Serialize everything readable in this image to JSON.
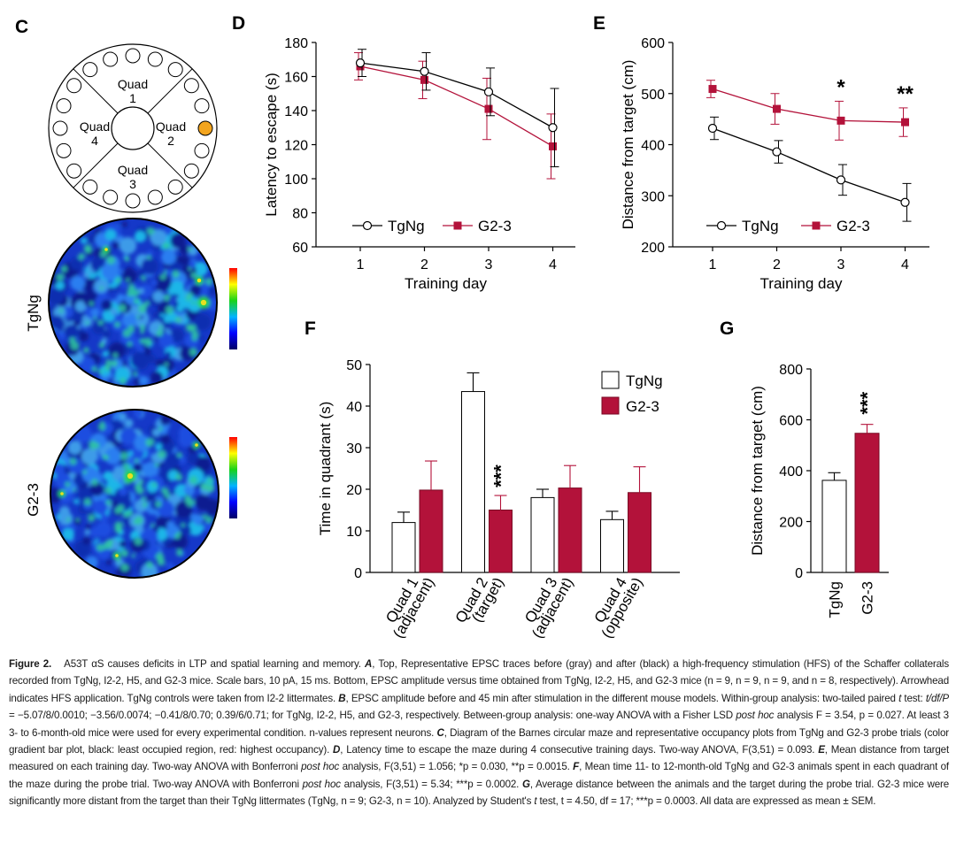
{
  "panels": {
    "C": {
      "label": "C",
      "quads": [
        {
          "name": "Quad",
          "num": "1"
        },
        {
          "name": "Quad",
          "num": "2"
        },
        {
          "name": "Quad",
          "num": "3"
        },
        {
          "name": "Quad",
          "num": "4"
        }
      ],
      "heatmaps": [
        {
          "group": "TgNg"
        },
        {
          "group": "G2-3"
        }
      ],
      "target_color": "#f3a51f"
    },
    "D": {
      "label": "D"
    },
    "E": {
      "label": "E"
    },
    "F": {
      "label": "F"
    },
    "G": {
      "label": "G"
    }
  },
  "chart_data": [
    {
      "panel": "D",
      "type": "line",
      "ylabel": "Latency to escape (s)",
      "xlabel": "Training day",
      "x": [
        1,
        2,
        3,
        4
      ],
      "ylim": [
        60,
        180
      ],
      "yticks": [
        60,
        80,
        100,
        120,
        140,
        160,
        180
      ],
      "legend": [
        "TgNg",
        "G2-3"
      ],
      "series": [
        {
          "name": "TgNg",
          "values": [
            168,
            163,
            151,
            130
          ],
          "err": [
            8,
            11,
            14,
            23
          ],
          "color": "#000000",
          "marker": "open-circle"
        },
        {
          "name": "G2-3",
          "values": [
            166,
            158,
            141,
            119
          ],
          "err": [
            8,
            11,
            18,
            19
          ],
          "color": "#b3123a",
          "marker": "square"
        }
      ]
    },
    {
      "panel": "E",
      "type": "line",
      "ylabel": "Distance from target (cm)",
      "xlabel": "Training day",
      "x": [
        1,
        2,
        3,
        4
      ],
      "ylim": [
        200,
        600
      ],
      "yticks": [
        200,
        300,
        400,
        500,
        600
      ],
      "legend": [
        "TgNg",
        "G2-3"
      ],
      "annotations": [
        {
          "x": 3,
          "text": "*"
        },
        {
          "x": 4,
          "text": "**"
        }
      ],
      "series": [
        {
          "name": "TgNg",
          "values": [
            432,
            386,
            331,
            287
          ],
          "err": [
            22,
            22,
            30,
            37
          ],
          "color": "#000000",
          "marker": "open-circle"
        },
        {
          "name": "G2-3",
          "values": [
            509,
            470,
            447,
            444
          ],
          "err": [
            17,
            30,
            38,
            28
          ],
          "color": "#b3123a",
          "marker": "square"
        }
      ]
    },
    {
      "panel": "F",
      "type": "bar",
      "ylabel": "Time in quadrant (s)",
      "categories": [
        [
          "Quad 1",
          "(adjacent)"
        ],
        [
          "Quad 2",
          "(target)"
        ],
        [
          "Quad 3",
          "(adjacent)"
        ],
        [
          "Quad 4",
          "(opposite)"
        ]
      ],
      "ylim": [
        0,
        50
      ],
      "yticks": [
        0,
        10,
        20,
        30,
        40,
        50
      ],
      "legend": [
        "TgNg",
        "G2-3"
      ],
      "annotations": [
        {
          "category": 1,
          "series": "G2-3",
          "text": "***"
        }
      ],
      "series": [
        {
          "name": "TgNg",
          "values": [
            12,
            43.5,
            18,
            12.7
          ],
          "err": [
            2.5,
            4.5,
            2,
            2
          ],
          "color": "#ffffff"
        },
        {
          "name": "G2-3",
          "values": [
            19.8,
            15,
            20.3,
            19.2
          ],
          "err": [
            7,
            3.5,
            5.4,
            6.2
          ],
          "color": "#b3123a"
        }
      ]
    },
    {
      "panel": "G",
      "type": "bar",
      "ylabel": "Distance from target (cm)",
      "categories": [
        "TgNg",
        "G2-3"
      ],
      "ylim": [
        0,
        800
      ],
      "yticks": [
        0,
        200,
        400,
        600,
        800
      ],
      "annotations": [
        {
          "category": 1,
          "text": "***"
        }
      ],
      "values": [
        362,
        547
      ],
      "err": [
        30,
        35
      ],
      "colors": [
        "#ffffff",
        "#b3123a"
      ]
    }
  ],
  "caption": {
    "label": "Figure 2.",
    "segments": [
      {
        "t": "A53T αS causes deficits in LTP and spatial learning and memory. ",
        "s": "n"
      },
      {
        "t": "A",
        "s": "b"
      },
      {
        "t": ", Top, Representative EPSC traces before (gray) and after (black) a high-frequency stimulation (HFS) of the Schaffer collaterals recorded from TgNg, I2-2, H5, and G2-3 mice. Scale bars, 10 pA, 15 ms. Bottom, EPSC amplitude versus time obtained from TgNg, I2-2, H5, and G2-3 mice (n = 9, n = 9, n = 9, and n = 8, respectively). Arrowhead indicates HFS application. TgNg controls were taken from I2-2 littermates. ",
        "s": "n"
      },
      {
        "t": "B",
        "s": "b"
      },
      {
        "t": ", EPSC amplitude before and 45 min after stimulation in the different mouse models. Within-group analysis: two-tailed paired ",
        "s": "n"
      },
      {
        "t": "t",
        "s": "i"
      },
      {
        "t": " test: ",
        "s": "n"
      },
      {
        "t": "t/df/P",
        "s": "i"
      },
      {
        "t": " = −5.07/8/0.0010; −3.56/0.0074; −0.41/8/0.70; 0.39/6/0.71; for TgNg, I2-2, H5, and G2-3, respectively. Between-group analysis: one-way ANOVA with a Fisher LSD ",
        "s": "n"
      },
      {
        "t": "post hoc",
        "s": "i"
      },
      {
        "t": " analysis F = 3.54, p = 0.027. At least 3 3- to 6-month-old mice were used for every experimental condition. n-values represent neurons. ",
        "s": "n"
      },
      {
        "t": "C",
        "s": "b"
      },
      {
        "t": ", Diagram of the Barnes circular maze and representative occupancy plots from TgNg and G2-3 probe trials (color gradient bar plot, black: least occupied region, red: highest occupancy). ",
        "s": "n"
      },
      {
        "t": "D",
        "s": "b"
      },
      {
        "t": ", Latency time to escape the maze during 4 consecutive training days. Two-way ANOVA, F(3,51) = 0.093. ",
        "s": "n"
      },
      {
        "t": "E",
        "s": "b"
      },
      {
        "t": ", Mean distance from target measured on each training day. Two-way ANOVA with Bonferroni ",
        "s": "n"
      },
      {
        "t": "post hoc",
        "s": "i"
      },
      {
        "t": " analysis, F(3,51) = 1.056; *p = 0.030, **p = 0.0015. ",
        "s": "n"
      },
      {
        "t": "F",
        "s": "b"
      },
      {
        "t": ", Mean time 11- to 12-month-old TgNg and G2-3 animals spent in each quadrant of the maze during the probe trial. Two-way ANOVA with Bonferroni ",
        "s": "n"
      },
      {
        "t": "post hoc",
        "s": "i"
      },
      {
        "t": " analysis, F(3,51) = 5.34; ***p = 0.0002. ",
        "s": "n"
      },
      {
        "t": "G",
        "s": "b"
      },
      {
        "t": ", Average distance between the animals and the target during the probe trial. G2-3 mice were significantly more distant from the target than their TgNg littermates (TgNg, n = 9; G2-3, n = 10). Analyzed by Student's ",
        "s": "n"
      },
      {
        "t": "t",
        "s": "i"
      },
      {
        "t": " test, t = 4.50, df = 17; ***p = 0.0003. All data are expressed as mean ± SEM.",
        "s": "n"
      }
    ]
  }
}
